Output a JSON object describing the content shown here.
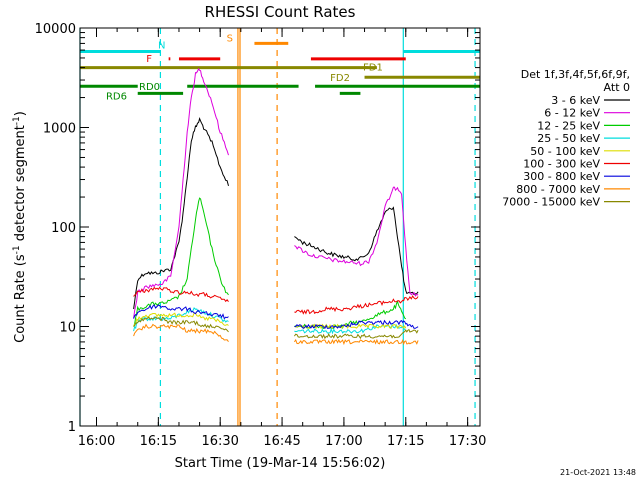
{
  "chart_data": {
    "type": "line",
    "title": "RHESSI Count Rates",
    "xlabel": "Start Time (19-Mar-14 15:56:02)",
    "ylabel": "Count Rate (s",
    "ylabel_sup1": "-1",
    "ylabel_mid": " detector segment",
    "ylabel_sup2": "-1",
    "ylabel_end": ")",
    "x_unit": "minutes after 15:56:02",
    "xlim": [
      0,
      97
    ],
    "ylim": [
      1,
      10000
    ],
    "y_scale": "log",
    "x_ticks": [
      {
        "label": "16:00",
        "value": 4
      },
      {
        "label": "16:15",
        "value": 19
      },
      {
        "label": "16:30",
        "value": 34
      },
      {
        "label": "16:45",
        "value": 49
      },
      {
        "label": "17:00",
        "value": 64
      },
      {
        "label": "17:15",
        "value": 79
      },
      {
        "label": "17:30",
        "value": 94
      }
    ],
    "y_ticks": [
      {
        "label": "1",
        "value": 1
      },
      {
        "label": "10",
        "value": 10
      },
      {
        "label": "100",
        "value": 100
      },
      {
        "label": "1000",
        "value": 1000
      },
      {
        "label": "10000",
        "value": 10000
      }
    ],
    "legend_header": [
      "Det 1f,3f,4f,5f,6f,9f,",
      "Att 0"
    ],
    "series": [
      {
        "name": "3 - 6 keV",
        "color": "#000000",
        "x": [
          13,
          14,
          16,
          18,
          20,
          22,
          24,
          25,
          26,
          27,
          28,
          29,
          30,
          32,
          34,
          36,
          52,
          54,
          56,
          58,
          60,
          62,
          64,
          66,
          68,
          70,
          72,
          74,
          76,
          78,
          79,
          80,
          82
        ],
        "y": [
          15,
          30,
          35,
          34,
          36,
          38,
          70,
          140,
          320,
          750,
          1000,
          1200,
          1000,
          700,
          400,
          260,
          80,
          70,
          65,
          60,
          55,
          52,
          50,
          48,
          48,
          55,
          90,
          140,
          160,
          40,
          22,
          21,
          22
        ]
      },
      {
        "name": "6 - 12 keV",
        "color": "#dd00dd",
        "x": [
          13,
          14,
          16,
          18,
          20,
          22,
          24,
          25,
          26,
          27,
          28,
          29,
          30,
          32,
          34,
          36,
          52,
          54,
          56,
          58,
          60,
          62,
          64,
          66,
          68,
          70,
          72,
          74,
          76,
          77,
          78,
          79,
          80,
          82
        ],
        "y": [
          12,
          22,
          25,
          26,
          27,
          32,
          100,
          300,
          900,
          2000,
          3400,
          3900,
          3000,
          1800,
          900,
          550,
          65,
          58,
          52,
          50,
          48,
          46,
          45,
          44,
          43,
          45,
          70,
          160,
          240,
          250,
          220,
          60,
          22,
          20
        ]
      },
      {
        "name": "12 - 25 keV",
        "color": "#00cc00",
        "x": [
          13,
          14,
          16,
          18,
          20,
          22,
          24,
          26,
          28,
          29,
          30,
          32,
          34,
          36,
          52,
          56,
          60,
          64,
          66,
          68,
          70,
          72,
          74,
          76,
          77,
          78,
          79
        ],
        "y": [
          10,
          15,
          16,
          17,
          17,
          18,
          20,
          30,
          120,
          200,
          140,
          60,
          30,
          20,
          10,
          10,
          10,
          10,
          11,
          11,
          12,
          13,
          14,
          15,
          17,
          14,
          12
        ]
      },
      {
        "name": "25 - 50 keV",
        "color": "#00dddd",
        "x": [
          13,
          14,
          16,
          18,
          20,
          22,
          24,
          26,
          28,
          30,
          32,
          34,
          36,
          52,
          56,
          60,
          64,
          68,
          72,
          76,
          78,
          79
        ],
        "y": [
          9,
          11,
          12,
          12,
          12,
          12,
          13,
          14,
          15,
          14,
          13,
          12,
          11,
          9,
          9,
          9,
          9,
          9,
          10,
          10,
          10,
          9
        ]
      },
      {
        "name": "50 - 100 keV",
        "color": "#dddd00",
        "x": [
          13,
          14,
          16,
          18,
          20,
          22,
          24,
          26,
          28,
          30,
          32,
          34,
          36,
          52,
          56,
          60,
          64,
          68,
          72,
          76,
          78,
          79
        ],
        "y": [
          10,
          12,
          13,
          13,
          13,
          13,
          13,
          13,
          13,
          12,
          12,
          11,
          10,
          10,
          10,
          10,
          10,
          10,
          10,
          10,
          10,
          10
        ]
      },
      {
        "name": "100 - 300 keV",
        "color": "#ee0000",
        "x": [
          13,
          14,
          16,
          18,
          20,
          22,
          24,
          26,
          28,
          30,
          32,
          34,
          36,
          52,
          56,
          60,
          64,
          68,
          72,
          76,
          78,
          79,
          80,
          82
        ],
        "y": [
          20,
          22,
          23,
          24,
          24,
          23,
          22,
          22,
          21,
          21,
          20,
          19,
          18,
          14,
          14,
          15,
          15,
          16,
          17,
          18,
          18,
          19,
          19,
          20
        ]
      },
      {
        "name": "300 - 800 keV",
        "color": "#0000dd",
        "x": [
          13,
          14,
          16,
          18,
          20,
          22,
          24,
          26,
          28,
          30,
          32,
          34,
          36,
          52,
          56,
          60,
          64,
          68,
          72,
          76,
          78,
          79,
          80,
          82
        ],
        "y": [
          12,
          14,
          15,
          16,
          16,
          15,
          15,
          15,
          14,
          14,
          13,
          13,
          12,
          10,
          10,
          10,
          10,
          11,
          11,
          11,
          11,
          11,
          10,
          10
        ]
      },
      {
        "name": "800 - 7000 keV",
        "color": "#ff8800",
        "x": [
          13,
          14,
          16,
          18,
          20,
          22,
          24,
          26,
          28,
          30,
          32,
          34,
          36,
          52,
          56,
          60,
          64,
          68,
          72,
          76,
          78,
          79,
          80,
          82
        ],
        "y": [
          8,
          9,
          10,
          10,
          10,
          10,
          10,
          9,
          9,
          9,
          9,
          8,
          7,
          7,
          7,
          7,
          7,
          7,
          7,
          7,
          7,
          7,
          7,
          7
        ]
      },
      {
        "name": "7000 - 15000 keV",
        "color": "#888800",
        "x": [
          13,
          14,
          16,
          18,
          20,
          22,
          24,
          26,
          28,
          30,
          32,
          34,
          36,
          52,
          56,
          60,
          64,
          68,
          72,
          76,
          78,
          79,
          80,
          82
        ],
        "y": [
          10,
          11,
          12,
          12,
          12,
          11,
          11,
          11,
          11,
          10,
          10,
          10,
          9,
          8,
          8,
          8,
          8,
          8,
          8,
          8,
          8,
          9,
          9,
          9
        ]
      }
    ],
    "vertical_lines": [
      {
        "x": 0,
        "color": "#00dddd",
        "style": "solid"
      },
      {
        "x": 19.5,
        "color": "#00dddd",
        "style": "dashed"
      },
      {
        "x": 38.3,
        "color": "#ff8800",
        "style": "solid"
      },
      {
        "x": 38.8,
        "color": "#ff8800",
        "style": "solid"
      },
      {
        "x": 47.8,
        "color": "#ff8800",
        "style": "dashed"
      },
      {
        "x": 78.4,
        "color": "#00dddd",
        "style": "solid"
      },
      {
        "x": 95.8,
        "color": "#00dddd",
        "style": "dashed"
      }
    ],
    "flag_bars": [
      {
        "label": "N",
        "color": "#00dddd",
        "value": 5800,
        "segments": [
          [
            0,
            19.5
          ],
          [
            78.4,
            97
          ]
        ]
      },
      {
        "label": "S",
        "color": "#ff8800",
        "value": 7000,
        "segments": [
          [
            42.3,
            50.5
          ]
        ]
      },
      {
        "label": "F",
        "color": "#ee0000",
        "value": 4900,
        "segments": [
          [
            21.5,
            21.9
          ],
          [
            24,
            34
          ],
          [
            56,
            79
          ]
        ]
      },
      {
        "label": "FD1",
        "color": "#888800",
        "value": 4000,
        "segments": [
          [
            0,
            72
          ]
        ]
      },
      {
        "label": "FD2",
        "color": "#888800",
        "value": 3200,
        "segments": [
          [
            69,
            97
          ]
        ]
      },
      {
        "label": "RD0",
        "color": "#008800",
        "value": 2600,
        "segments": [
          [
            0,
            14
          ],
          [
            26,
            53
          ],
          [
            57,
            97
          ]
        ]
      },
      {
        "label": "RD6",
        "color": "#008800",
        "value": 2200,
        "segments": [
          [
            14,
            25
          ],
          [
            63,
            68
          ]
        ]
      }
    ],
    "footer": "21-Oct-2021 13:48"
  }
}
